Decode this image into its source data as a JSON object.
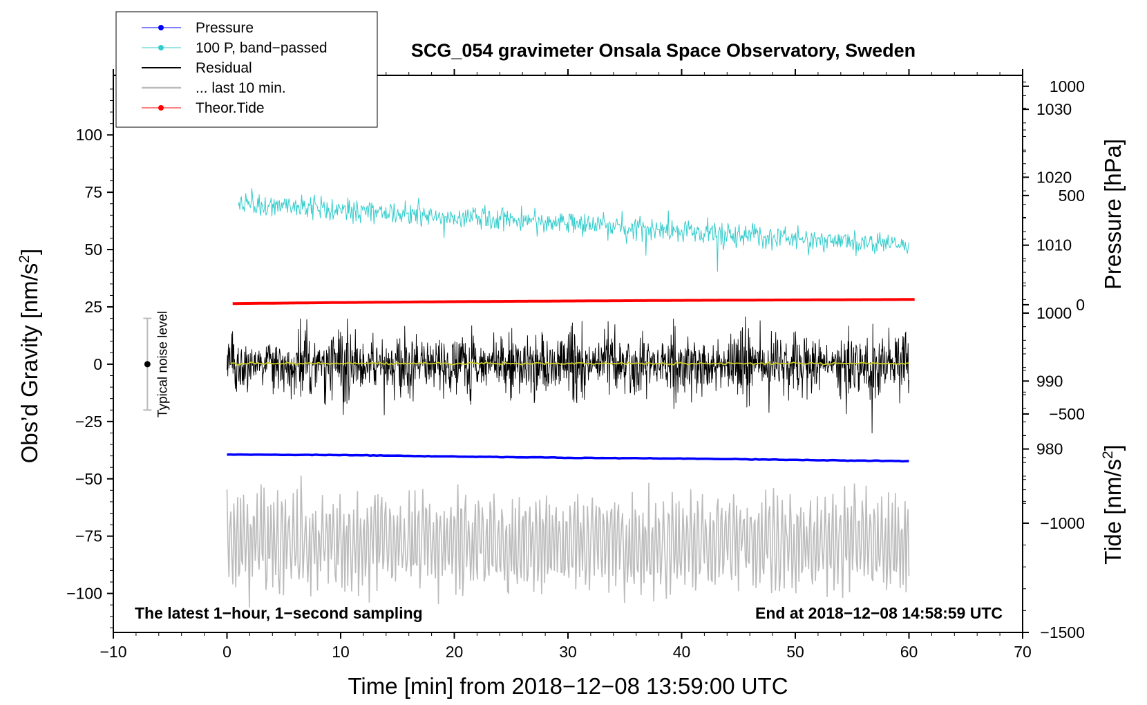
{
  "chart_data": {
    "type": "line",
    "title": "SCG_054 gravimeter Onsala Space Observatory, Sweden",
    "xlabel": "Time [min] from 2018−12−08 13:59:00 UTC",
    "ylabel_left": "Obs’d Gravity [nm/s",
    "ylabel_left_sup": "2",
    "ylabel_left_end": "]",
    "ylabel_pressure": "Pressure [hPa]",
    "ylabel_tide": "Tide [nm/s",
    "ylabel_tide_sup": "2",
    "ylabel_tide_end": "]",
    "xlim": [
      -10,
      70
    ],
    "ylim_left": [
      -117,
      126
    ],
    "ylim_pressure": [
      953,
      1035
    ],
    "ylim_tide": [
      -1500,
      1050
    ],
    "x_ticks": [
      {
        "value": -10,
        "label": "−10"
      },
      {
        "value": 0,
        "label": "0"
      },
      {
        "value": 10,
        "label": "10"
      },
      {
        "value": 20,
        "label": "20"
      },
      {
        "value": 30,
        "label": "30"
      },
      {
        "value": 40,
        "label": "40"
      },
      {
        "value": 50,
        "label": "50"
      },
      {
        "value": 60,
        "label": "60"
      },
      {
        "value": 70,
        "label": "70"
      }
    ],
    "y_ticks_left": [
      {
        "value": 100,
        "label": "100"
      },
      {
        "value": 75,
        "label": "75"
      },
      {
        "value": 50,
        "label": "50"
      },
      {
        "value": 25,
        "label": "25"
      },
      {
        "value": 0,
        "label": "0"
      },
      {
        "value": -25,
        "label": "−25"
      },
      {
        "value": -50,
        "label": "−50"
      },
      {
        "value": -75,
        "label": "−75"
      },
      {
        "value": -100,
        "label": "−100"
      }
    ],
    "y_ticks_pressure": [
      {
        "value": 1030,
        "label": "1030"
      },
      {
        "value": 1020,
        "label": "1020"
      },
      {
        "value": 1010,
        "label": "1010"
      },
      {
        "value": 1000,
        "label": "1000"
      },
      {
        "value": 990,
        "label": "990"
      },
      {
        "value": 980,
        "label": "980"
      }
    ],
    "y_ticks_tide": [
      {
        "value": 1000,
        "label": "1000"
      },
      {
        "value": 500,
        "label": "500"
      },
      {
        "value": 0,
        "label": "0"
      },
      {
        "value": -500,
        "label": "−500"
      },
      {
        "value": -1000,
        "label": "−1000"
      },
      {
        "value": -1500,
        "label": "−1500"
      }
    ],
    "legend_position": "top-left",
    "series": [
      {
        "name": "Pressure",
        "color": "#0000ff",
        "axis": "pressure",
        "points": [
          [
            0,
            979.2
          ],
          [
            10,
            979.1
          ],
          [
            20,
            978.9
          ],
          [
            30,
            978.7
          ],
          [
            40,
            978.6
          ],
          [
            50,
            978.4
          ],
          [
            60,
            978.2
          ]
        ]
      },
      {
        "name": "100 P, band−passed",
        "color": "#33cccc",
        "axis": "left",
        "x_start": 1,
        "x_end": 60,
        "trend_start": 70,
        "trend_end": 52,
        "noise_amplitude": 6.5
      },
      {
        "name": "Residual",
        "color": "#000000",
        "axis": "left",
        "x_start": 0,
        "x_end": 60,
        "mean": 0,
        "noise_amplitude": 14
      },
      {
        "name": "... last 10 min.",
        "color": "#bbbbbb",
        "axis": "left",
        "x_start": 0,
        "x_end": 60,
        "mean": -78,
        "noise_amplitude": 18
      },
      {
        "name": "Theor.Tide",
        "color": "#ff0000",
        "axis": "tide",
        "points": [
          [
            0,
            5
          ],
          [
            10,
            10
          ],
          [
            20,
            14
          ],
          [
            30,
            17
          ],
          [
            40,
            20
          ],
          [
            50,
            22
          ],
          [
            60,
            24
          ]
        ]
      }
    ],
    "smoothed_series": {
      "name": "",
      "color": "#cccc22",
      "mean": 0.3
    },
    "noise_bar": {
      "label": "Typical noise level",
      "x": -7,
      "low": -20,
      "high": 20,
      "center": 0
    },
    "annotations": {
      "left": "The latest 1−hour, 1−second sampling",
      "right": "End at 2018−12−08 14:58:59 UTC"
    }
  }
}
